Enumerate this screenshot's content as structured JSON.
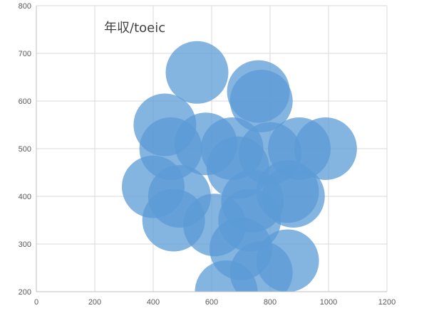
{
  "chart_data": {
    "type": "scatter",
    "title": "年収/toeic",
    "xlabel": "",
    "ylabel": "",
    "xlim": [
      0,
      1200
    ],
    "ylim": [
      200,
      800
    ],
    "x_ticks": [
      "0",
      "200",
      "400",
      "600",
      "800",
      "1000",
      "1200"
    ],
    "y_ticks": [
      "200",
      "300",
      "400",
      "500",
      "600",
      "700",
      "800"
    ],
    "grid": true,
    "legend": "none",
    "bubble_color": "#5b9bd5",
    "series": [
      {
        "points": [
          {
            "x": 550,
            "y": 660
          },
          {
            "x": 760,
            "y": 620
          },
          {
            "x": 770,
            "y": 600
          },
          {
            "x": 440,
            "y": 550
          },
          {
            "x": 580,
            "y": 510
          },
          {
            "x": 460,
            "y": 500
          },
          {
            "x": 670,
            "y": 500
          },
          {
            "x": 800,
            "y": 490
          },
          {
            "x": 900,
            "y": 500
          },
          {
            "x": 990,
            "y": 500
          },
          {
            "x": 690,
            "y": 460
          },
          {
            "x": 400,
            "y": 420
          },
          {
            "x": 490,
            "y": 400
          },
          {
            "x": 740,
            "y": 390
          },
          {
            "x": 860,
            "y": 410
          },
          {
            "x": 880,
            "y": 400
          },
          {
            "x": 730,
            "y": 350
          },
          {
            "x": 470,
            "y": 350
          },
          {
            "x": 610,
            "y": 340
          },
          {
            "x": 700,
            "y": 290
          },
          {
            "x": 860,
            "y": 265
          },
          {
            "x": 770,
            "y": 240
          },
          {
            "x": 650,
            "y": 200
          }
        ]
      }
    ]
  }
}
